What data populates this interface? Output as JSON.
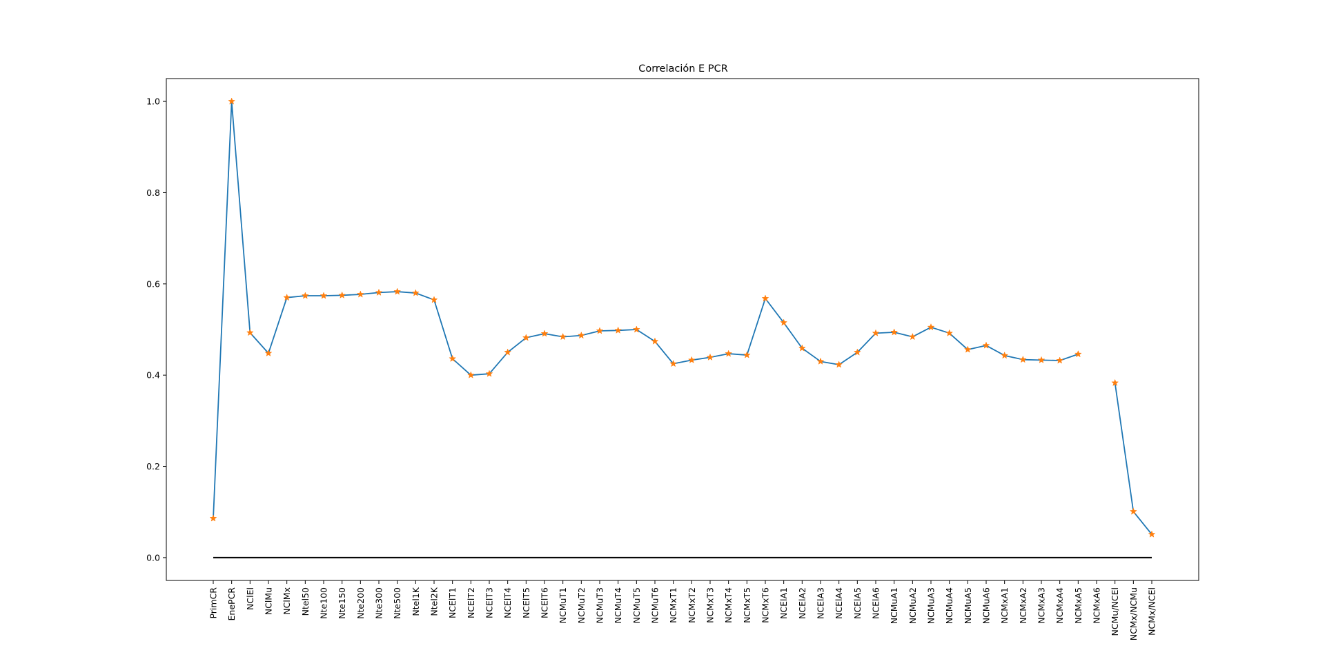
{
  "chart_data": {
    "type": "line",
    "title": "Correlación E PCR",
    "xlabel": "",
    "ylabel": "",
    "ylim": [
      -0.05,
      1.05
    ],
    "yticks": [
      "0.0",
      "0.2",
      "0.4",
      "0.6",
      "0.8",
      "1.0"
    ],
    "grid": false,
    "categories": [
      "PrimCR",
      "EnePCR",
      "NClEl",
      "NClMu",
      "NClMx",
      "Ntel50",
      "Nte100",
      "Nte150",
      "Nte200",
      "Nte300",
      "Nte500",
      "Ntel1K",
      "Ntel2K",
      "NCElT1",
      "NCElT2",
      "NCElT3",
      "NCElT4",
      "NCElT5",
      "NCElT6",
      "NCMuT1",
      "NCMuT2",
      "NCMuT3",
      "NCMuT4",
      "NCMuT5",
      "NCMuT6",
      "NCMxT1",
      "NCMxT2",
      "NCMxT3",
      "NCMxT4",
      "NCMxT5",
      "NCMxT6",
      "NCElA1",
      "NCElA2",
      "NCElA3",
      "NCElA4",
      "NCElA5",
      "NCElA6",
      "NCMuA1",
      "NCMuA2",
      "NCMuA3",
      "NCMuA4",
      "NCMuA5",
      "NCMuA6",
      "NCMxA1",
      "NCMxA2",
      "NCMxA3",
      "NCMxA4",
      "NCMxA5",
      "NCMxA6",
      "NCMu/NCEl",
      "NCMx/NCMu",
      "NCMx/NCEl"
    ],
    "values": [
      0.086,
      1.0,
      0.493,
      0.448,
      0.57,
      0.574,
      0.574,
      0.575,
      0.577,
      0.581,
      0.583,
      0.58,
      0.565,
      0.436,
      0.4,
      0.403,
      0.45,
      0.482,
      0.491,
      0.484,
      0.487,
      0.497,
      0.498,
      0.5,
      0.474,
      0.425,
      0.433,
      0.439,
      0.447,
      0.444,
      0.568,
      0.515,
      0.459,
      0.43,
      0.423,
      0.45,
      0.492,
      0.494,
      0.484,
      0.505,
      0.492,
      0.456,
      0.465,
      0.443,
      0.434,
      0.433,
      0.432,
      0.446,
      null,
      0.383,
      0.101,
      0.051
    ],
    "reference_line": 0.0,
    "colors": {
      "line": "#1f77b4",
      "marker": "#ff7f0e",
      "reference": "#000000",
      "frame": "#000000"
    }
  }
}
